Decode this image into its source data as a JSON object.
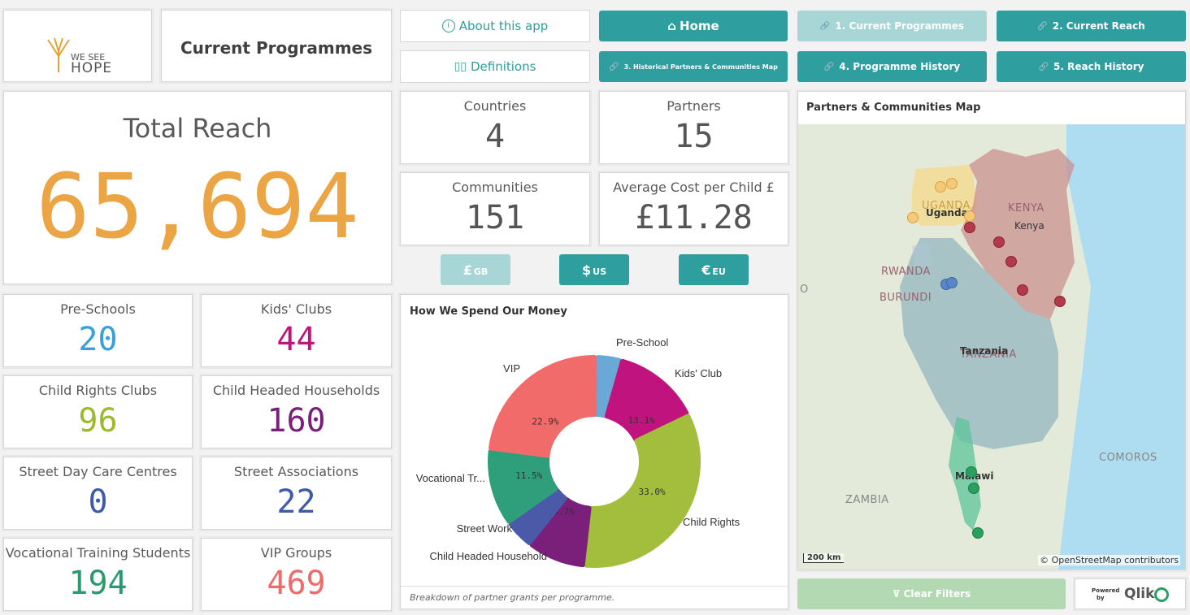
{
  "logo": {
    "line1": "WE SEE",
    "line2": "HOPE"
  },
  "page_title": "Current Programmes",
  "nav": {
    "about": "About this app",
    "definitions": "Definitions",
    "home": "Home",
    "current_programmes": "1. Current Programmes",
    "current_reach": "2. Current Reach",
    "historical_map": "3. Historical Partners & Communities Map",
    "programme_history": "4. Programme History",
    "reach_history": "5. Reach History"
  },
  "total_reach": {
    "label": "Total Reach",
    "value": "65,694"
  },
  "kpis": {
    "countries": {
      "label": "Countries",
      "value": "4"
    },
    "partners": {
      "label": "Partners",
      "value": "15"
    },
    "communities": {
      "label": "Communities",
      "value": "151"
    },
    "avg_cost": {
      "label": "Average Cost per Child £",
      "value": "£11.28"
    }
  },
  "currency": {
    "gb": {
      "symbol": "£",
      "code": "GB"
    },
    "us": {
      "symbol": "$",
      "code": "US"
    },
    "eu": {
      "symbol": "€",
      "code": "EU"
    }
  },
  "programmes": [
    {
      "label": "Pre-Schools",
      "value": "20",
      "color": "#3aa0d8"
    },
    {
      "label": "Kids' Clubs",
      "value": "44",
      "color": "#c0137d"
    },
    {
      "label": "Child Rights Clubs",
      "value": "96",
      "color": "#9bbb2c"
    },
    {
      "label": "Child Headed Households",
      "value": "160",
      "color": "#7a1f7a"
    },
    {
      "label": "Street Day Care Centres",
      "value": "0",
      "color": "#3f5aa8"
    },
    {
      "label": "Street Associations",
      "value": "22",
      "color": "#3f5aa8"
    },
    {
      "label": "Vocational Training Students",
      "value": "194",
      "color": "#2a9a6e"
    },
    {
      "label": "VIP Groups",
      "value": "469",
      "color": "#f06a6a"
    }
  ],
  "spend_chart": {
    "title": "How We Spend Our Money",
    "footnote": "Breakdown of partner grants per programme."
  },
  "chart_data": {
    "type": "pie",
    "title": "How We Spend Our Money",
    "slices": [
      {
        "name": "Pre-School",
        "value": 3.7,
        "color": "#6aa8d8",
        "pct_label": ""
      },
      {
        "name": "Kids' Club",
        "value": 13.1,
        "color": "#c0137d",
        "pct_label": "13.1%"
      },
      {
        "name": "Child Rights",
        "value": 33.0,
        "color": "#a3be3c",
        "pct_label": "33.0%"
      },
      {
        "name": "Child Headed Household",
        "value": 8.7,
        "color": "#7a1f7a",
        "pct_label": "8.7%"
      },
      {
        "name": "Street Work",
        "value": 4.4,
        "color": "#4a5aa8",
        "pct_label": ""
      },
      {
        "name": "Vocational Tr...",
        "value": 11.5,
        "color": "#2f9e7a",
        "pct_label": "11.5%"
      },
      {
        "name": "VIP",
        "value": 22.9,
        "color": "#f26b6b",
        "pct_label": "22.9%"
      }
    ]
  },
  "map": {
    "title": "Partners & Communities Map",
    "labels": {
      "uganda": "UGANDA",
      "uganda_small": "Uganda",
      "kenya": "KENYA",
      "kenya_small": "Kenya",
      "rwanda": "RWANDA",
      "burundi": "BURUNDI",
      "tanzania": "TANZANIA",
      "tanzania_small": "Tanzania",
      "malawi": "Malawi",
      "zambia": "ZAMBIA",
      "comoros": "COMOROS",
      "edge": "O"
    },
    "scale": "200 km",
    "attribution": "© OpenStreetMap contributors",
    "colors": {
      "uganda": "#f5d98a",
      "kenya": "#c98a8a",
      "tanzania": "#7fa8b8",
      "malawi": "#5cc49a"
    }
  },
  "clear_filters": "Clear Filters",
  "qlik": {
    "powered": "Powered",
    "by": "by",
    "brand": "Qlik"
  }
}
